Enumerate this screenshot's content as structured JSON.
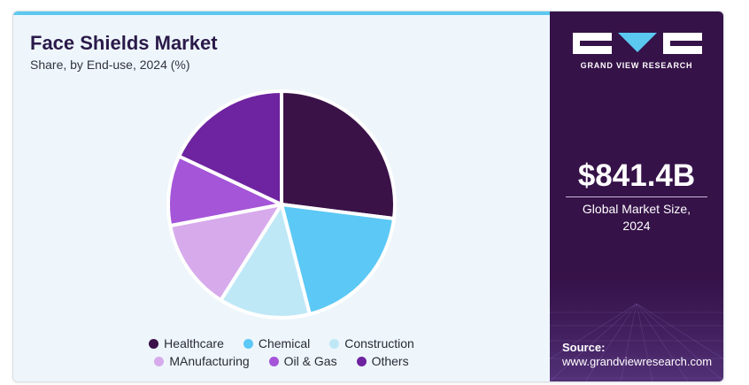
{
  "header": {
    "title": "Face Shields Market",
    "subtitle": "Share, by End-use, 2024 (%)"
  },
  "brand": {
    "name": "GRAND VIEW RESEARCH",
    "logo_icon": "grand-view-research-logo"
  },
  "highlight": {
    "value": "$841.4B",
    "caption_line1": "Global Market Size,",
    "caption_line2": "2024"
  },
  "source": {
    "label": "Source:",
    "url": "www.grandviewresearch.com"
  },
  "colors": {
    "accent_bar": "#5bc8f0",
    "sidebar_bg": "#351248",
    "plot_bg": "#eef6fb"
  },
  "chart_data": {
    "type": "pie",
    "title": "Face Shields Market",
    "subtitle": "Share, by End-use, 2024 (%)",
    "legend_position": "bottom",
    "start_angle_deg": 0,
    "direction": "clockwise",
    "series": [
      {
        "name": "Healthcare",
        "value": 27,
        "color": "#3a1248"
      },
      {
        "name": "Chemical",
        "value": 19,
        "color": "#5cc8f5"
      },
      {
        "name": "Construction",
        "value": 13,
        "color": "#bfe8f7"
      },
      {
        "name": "MAnufacturing",
        "value": 13,
        "color": "#d7aaec"
      },
      {
        "name": "Oil & Gas",
        "value": 10,
        "color": "#a555d8"
      },
      {
        "name": "Others",
        "value": 18,
        "color": "#6e23a0"
      }
    ]
  }
}
